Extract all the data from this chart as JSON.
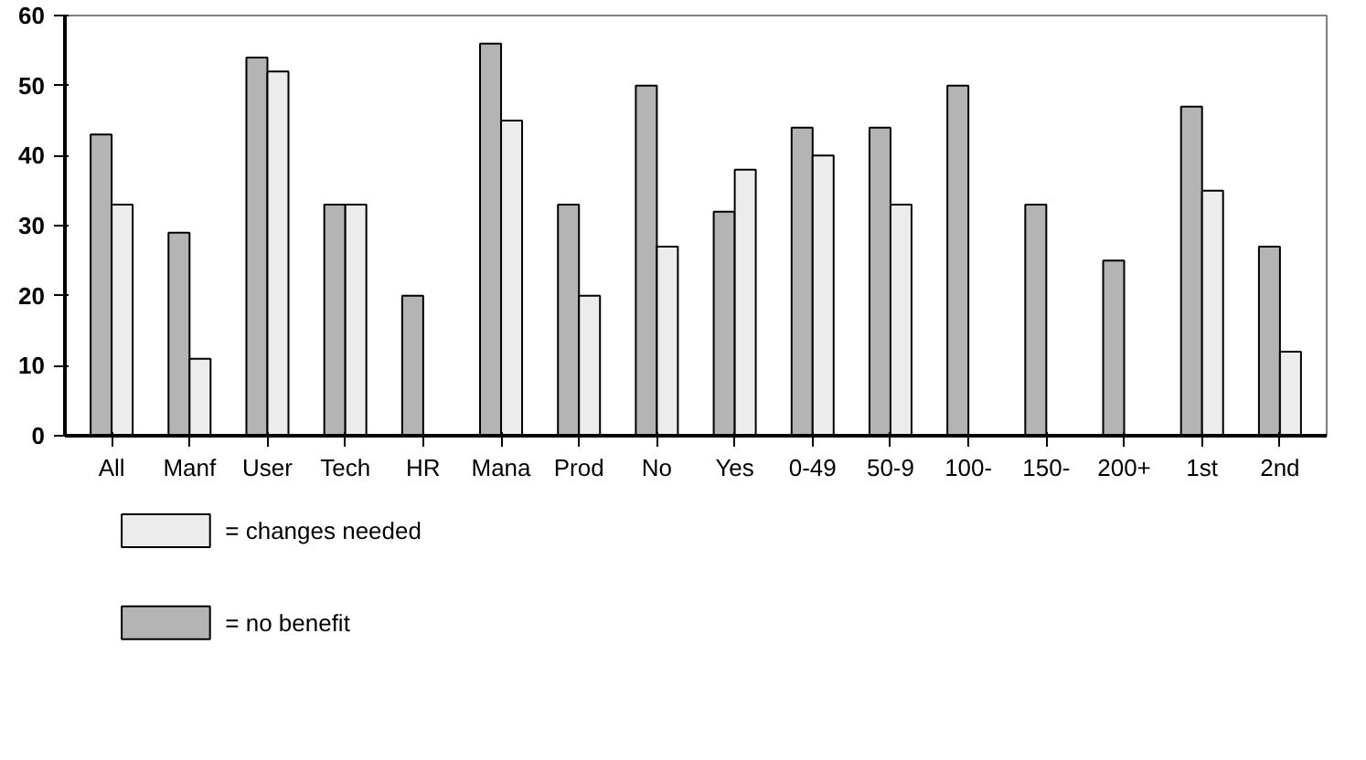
{
  "chart_data": {
    "type": "bar",
    "categories": [
      "All",
      "Manf",
      "User",
      "Tech",
      "HR",
      "Mana",
      "Prod",
      "No",
      "Yes",
      "0-49",
      "50-9",
      "100-",
      "150-",
      "200+",
      "1st",
      "2nd"
    ],
    "series": [
      {
        "name": "= no benefit",
        "color": "#b4b4b4",
        "values": [
          43,
          29,
          54,
          33,
          20,
          56,
          33,
          50,
          32,
          44,
          44,
          50,
          33,
          25,
          47,
          27
        ]
      },
      {
        "name": "= changes needed",
        "color": "#ececec",
        "values": [
          33,
          11,
          52,
          33,
          0,
          45,
          20,
          27,
          38,
          40,
          33,
          0,
          0,
          0,
          35,
          12
        ]
      }
    ],
    "ylim": [
      0,
      60
    ],
    "yticks": [
      0,
      10,
      20,
      30,
      40,
      50,
      60
    ],
    "grid": false,
    "legend": "bottom left"
  }
}
